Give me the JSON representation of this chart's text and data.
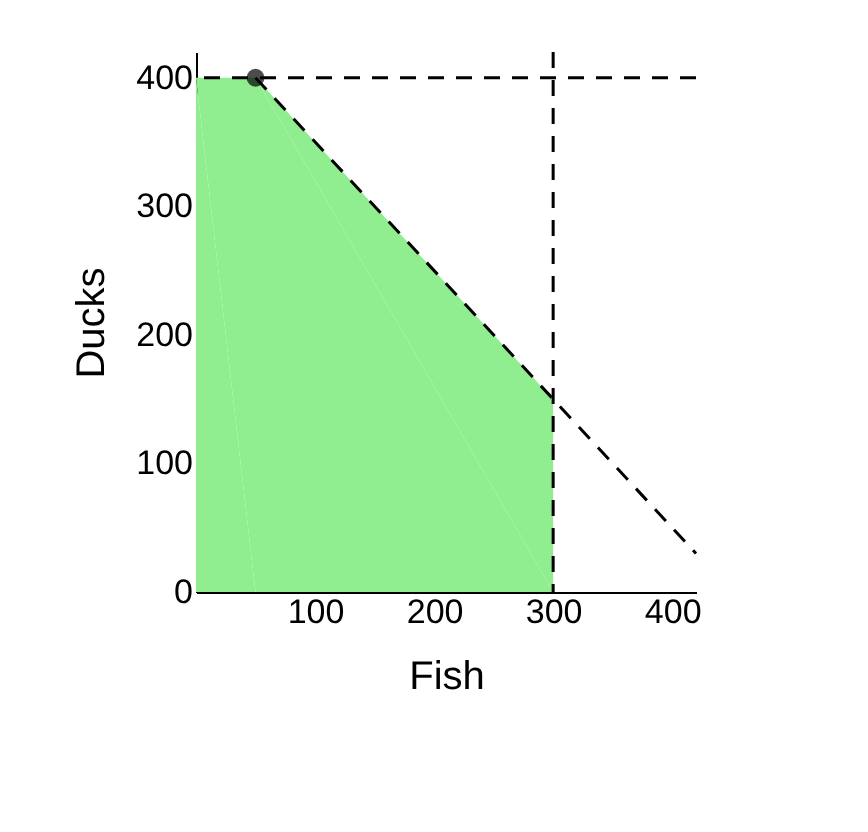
{
  "chart_data": {
    "type": "area",
    "xlabel": "Fish",
    "ylabel": "Ducks",
    "xlim": [
      0,
      420
    ],
    "ylim": [
      0,
      420
    ],
    "xticks": [
      100,
      200,
      300,
      400
    ],
    "yticks": [
      0,
      100,
      200,
      300,
      400
    ],
    "grid": false,
    "series": [
      {
        "color": "#90ee90",
        "x": [
          0,
          50,
          300,
          300
        ],
        "values": [
          400,
          400,
          150,
          0
        ]
      },
      {
        "type": "line",
        "color": "#000000",
        "line_style": "dashed",
        "marker": "none",
        "x": [
          50,
          420
        ],
        "values": [
          400,
          30
        ]
      },
      {
        "type": "scatter",
        "color": "#000000",
        "marker": "circle",
        "x": [
          50
        ],
        "values": [
          400
        ]
      }
    ],
    "ref_lines": [
      {
        "axis": "y",
        "value": 400,
        "color": "#000000",
        "line_style": "dashed"
      },
      {
        "axis": "x",
        "value": 300,
        "color": "#000000",
        "line_style": "dashed"
      }
    ]
  }
}
